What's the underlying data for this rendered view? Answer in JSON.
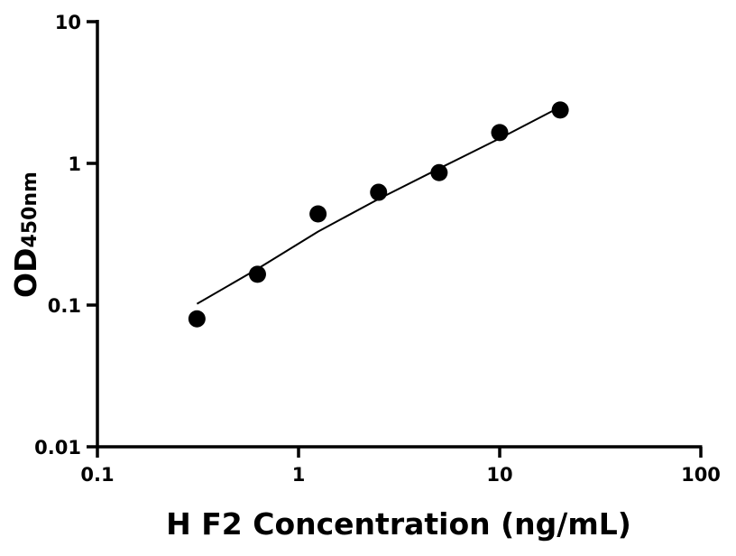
{
  "chart_data": {
    "type": "scatter",
    "title": "",
    "xlabel": "H F2 Concentration (ng/mL)",
    "ylabel": "OD",
    "ylabel_subscript": "450nm",
    "xscale": "log",
    "yscale": "log",
    "xlim": [
      0.1,
      100
    ],
    "ylim": [
      0.01,
      10
    ],
    "xticks": [
      0.1,
      1,
      10,
      100
    ],
    "xtick_labels": [
      "0.1",
      "1",
      "10",
      "100"
    ],
    "yticks": [
      0.01,
      0.1,
      1,
      10
    ],
    "ytick_labels": [
      "0.01",
      "0.1",
      "1",
      "10"
    ],
    "grid": false,
    "legend": "none",
    "series": [
      {
        "kind": "points",
        "x": [
          0.3125,
          0.625,
          1.25,
          2.5,
          5,
          10,
          20
        ],
        "y": [
          0.08,
          0.165,
          0.44,
          0.625,
          0.86,
          1.65,
          2.38
        ],
        "color": "#000000"
      },
      {
        "kind": "fit-curve",
        "x": [
          0.3125,
          0.625,
          1.25,
          2.5,
          5,
          10,
          20
        ],
        "y": [
          0.102,
          0.18,
          0.33,
          0.56,
          0.92,
          1.5,
          2.5
        ],
        "color": "#000000"
      }
    ]
  }
}
